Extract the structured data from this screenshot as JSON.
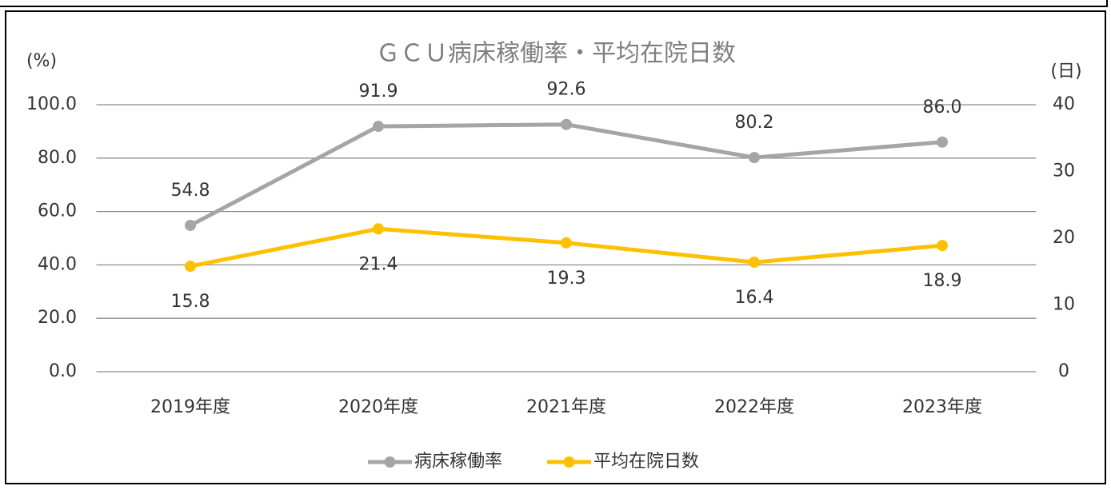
{
  "chart_data": {
    "type": "line",
    "title": "ＧＣＵ病床稼働率・平均在院日数",
    "y_label": "(%)",
    "y2_label": "(日)",
    "categories": [
      "2019年度",
      "2020年度",
      "2021年度",
      "2022年度",
      "2023年度"
    ],
    "series": [
      {
        "name": "病床稼働率",
        "color": "#a5a5a5",
        "values": [
          54.8,
          91.9,
          92.6,
          80.2,
          86.0
        ],
        "value_labels": [
          "54.8",
          "91.9",
          "92.6",
          "80.2",
          "86.0"
        ]
      },
      {
        "name": "平均在院日数",
        "color": "#ffc000",
        "axis": "y2",
        "values": [
          15.8,
          21.4,
          19.3,
          16.4,
          18.9
        ]
      }
    ],
    "ylim": [
      0,
      100
    ],
    "yticks": [
      {
        "value": 0,
        "label": "0.0"
      },
      {
        "value": 20,
        "label": "20.0"
      },
      {
        "value": 40,
        "label": "40.0"
      },
      {
        "value": 60,
        "label": "60.0"
      },
      {
        "value": 80,
        "label": "80.0"
      },
      {
        "value": 100,
        "label": "100.0"
      }
    ],
    "y2lim": [
      0,
      40
    ],
    "y2ticks": [
      0,
      10,
      20,
      30,
      40
    ],
    "grid": true,
    "legend": "bottom"
  }
}
